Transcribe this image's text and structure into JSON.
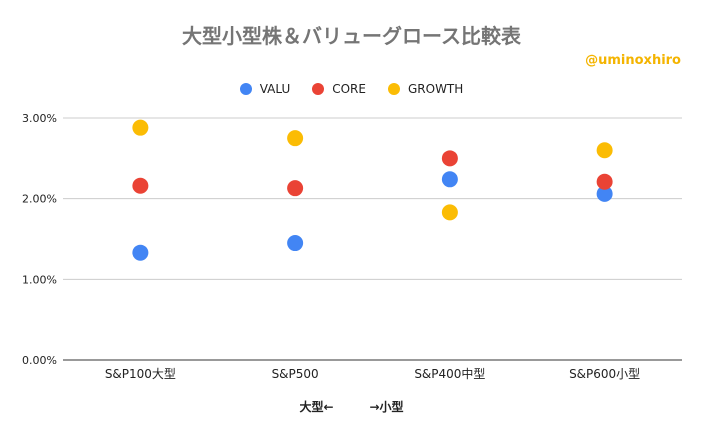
{
  "chart_data": {
    "type": "scatter",
    "title": "大型小型株＆バリューグロース比較表",
    "watermark": "@uminoxhiro",
    "xlabel": "大型←　　　→小型",
    "ylabel": "",
    "categories": [
      "S&P100大型",
      "S&P500",
      "S&P400中型",
      "S&P600小型"
    ],
    "ylim": [
      0,
      3
    ],
    "yticks": [
      0,
      1,
      2,
      3
    ],
    "ytick_labels": [
      "0.00%",
      "1.00%",
      "2.00%",
      "3.00%"
    ],
    "grid": true,
    "legend_position": "top",
    "series": [
      {
        "name": "VALU",
        "color": "#4285f4",
        "values": [
          1.33,
          1.45,
          2.24,
          2.06
        ]
      },
      {
        "name": "CORE",
        "color": "#ea4335",
        "values": [
          2.16,
          2.13,
          2.5,
          2.21
        ]
      },
      {
        "name": "GROWTH",
        "color": "#fbbc04",
        "values": [
          2.88,
          2.75,
          1.83,
          2.6
        ]
      }
    ]
  }
}
